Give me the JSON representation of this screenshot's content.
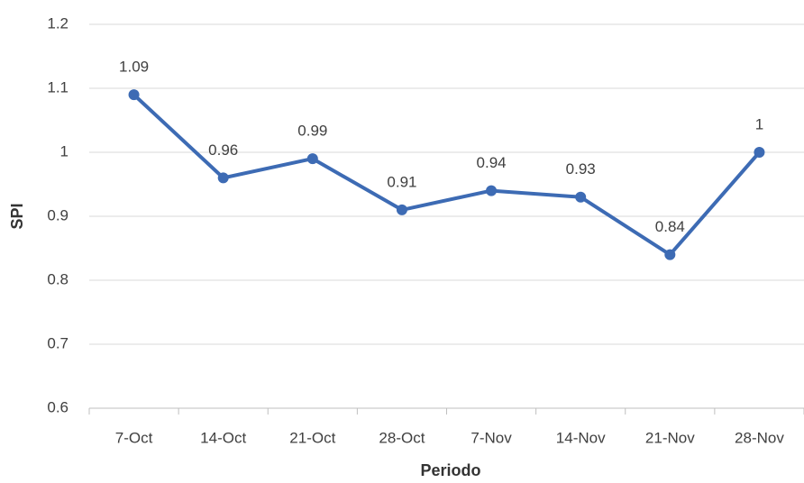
{
  "chart_data": {
    "type": "line",
    "categories": [
      "7-Oct",
      "14-Oct",
      "21-Oct",
      "28-Oct",
      "7-Nov",
      "14-Nov",
      "21-Nov",
      "28-Nov"
    ],
    "series": [
      {
        "name": "SPI",
        "color": "#3d6bb4",
        "values": [
          1.09,
          0.96,
          0.99,
          0.91,
          0.94,
          0.93,
          0.84,
          1
        ]
      }
    ],
    "ylim": [
      0.6,
      1.2
    ],
    "yticks": [
      0.6,
      0.7,
      0.8,
      0.9,
      1,
      1.1,
      1.2
    ],
    "grid": true,
    "ylabel": "SPI",
    "xlabel": "Periodo",
    "data_labels": true
  }
}
